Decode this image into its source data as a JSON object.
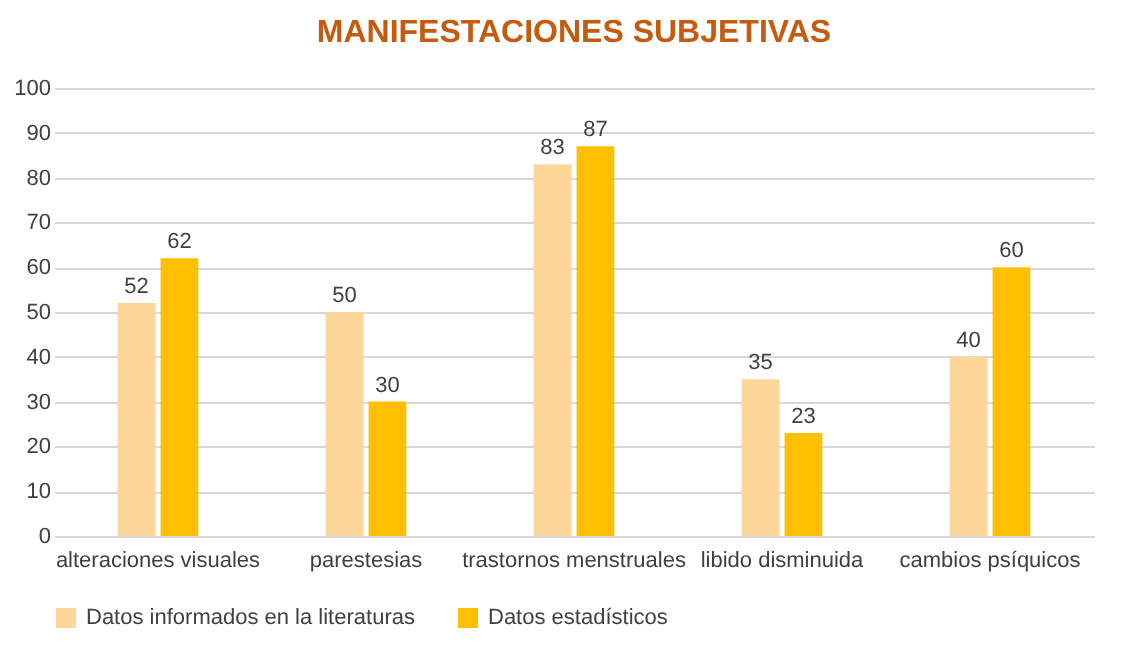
{
  "chart_data": {
    "type": "bar",
    "title": "MANIFESTACIONES SUBJETIVAS",
    "categories": [
      "alteraciones visuales",
      "parestesias",
      "trastornos menstruales",
      "libido disminuida",
      "cambios psíquicos"
    ],
    "series": [
      {
        "name": "Datos informados en la literaturas",
        "color": "#ffd699",
        "values": [
          52,
          50,
          83,
          35,
          40
        ]
      },
      {
        "name": "Datos estadísticos",
        "color": "#ffc000",
        "values": [
          62,
          30,
          87,
          23,
          60
        ]
      }
    ],
    "ylim": [
      0,
      100
    ],
    "yticks": [
      0,
      10,
      20,
      30,
      40,
      50,
      60,
      70,
      80,
      90,
      100
    ],
    "grid": "y",
    "legend": "bottom",
    "data_labels": true
  }
}
